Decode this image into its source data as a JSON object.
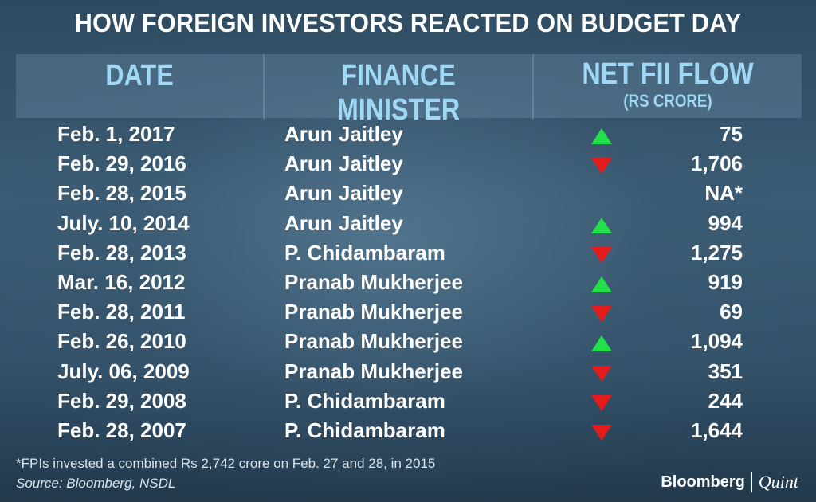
{
  "title": "HOW FOREIGN INVESTORS REACTED ON BUDGET DAY",
  "columns": {
    "date": "DATE",
    "minister": "FINANCE MINISTER",
    "flow": "NET FII FLOW",
    "flow_unit": "(RS CRORE)"
  },
  "colors": {
    "up": "#22e04a",
    "down": "#e31b1b",
    "header_text": "#9fd8f4"
  },
  "chart_data": {
    "type": "table",
    "title": "HOW FOREIGN INVESTORS REACTED ON BUDGET DAY",
    "columns": [
      "DATE",
      "FINANCE MINISTER",
      "NET FII FLOW (RS CRORE)"
    ],
    "rows": [
      {
        "date": "Feb. 1, 2017",
        "minister": "Arun Jaitley",
        "direction": "up",
        "value": "75"
      },
      {
        "date": "Feb. 29, 2016",
        "minister": "Arun Jaitley",
        "direction": "down",
        "value": "1,706"
      },
      {
        "date": "Feb. 28, 2015",
        "minister": "Arun Jaitley",
        "direction": "none",
        "value": "NA*"
      },
      {
        "date": "July. 10, 2014",
        "minister": "Arun Jaitley",
        "direction": "up",
        "value": "994"
      },
      {
        "date": "Feb. 28, 2013",
        "minister": "P. Chidambaram",
        "direction": "down",
        "value": "1,275"
      },
      {
        "date": "Mar. 16, 2012",
        "minister": "Pranab Mukherjee",
        "direction": "up",
        "value": "919"
      },
      {
        "date": "Feb. 28, 2011",
        "minister": "Pranab Mukherjee",
        "direction": "down",
        "value": "69"
      },
      {
        "date": "Feb. 26, 2010",
        "minister": "Pranab Mukherjee",
        "direction": "up",
        "value": "1,094"
      },
      {
        "date": "July. 06, 2009",
        "minister": "Pranab Mukherjee",
        "direction": "down",
        "value": "351"
      },
      {
        "date": "Feb. 29, 2008",
        "minister": "P. Chidambaram",
        "direction": "down",
        "value": "244"
      },
      {
        "date": "Feb. 28, 2007",
        "minister": "P. Chidambaram",
        "direction": "down",
        "value": "1,644"
      }
    ]
  },
  "footnote": "*FPIs invested a combined Rs 2,742 crore on Feb. 27 and 28, in 2015",
  "source": "Source: Bloomberg, NSDL",
  "brand": {
    "primary": "Bloomberg",
    "secondary": "Quint"
  }
}
